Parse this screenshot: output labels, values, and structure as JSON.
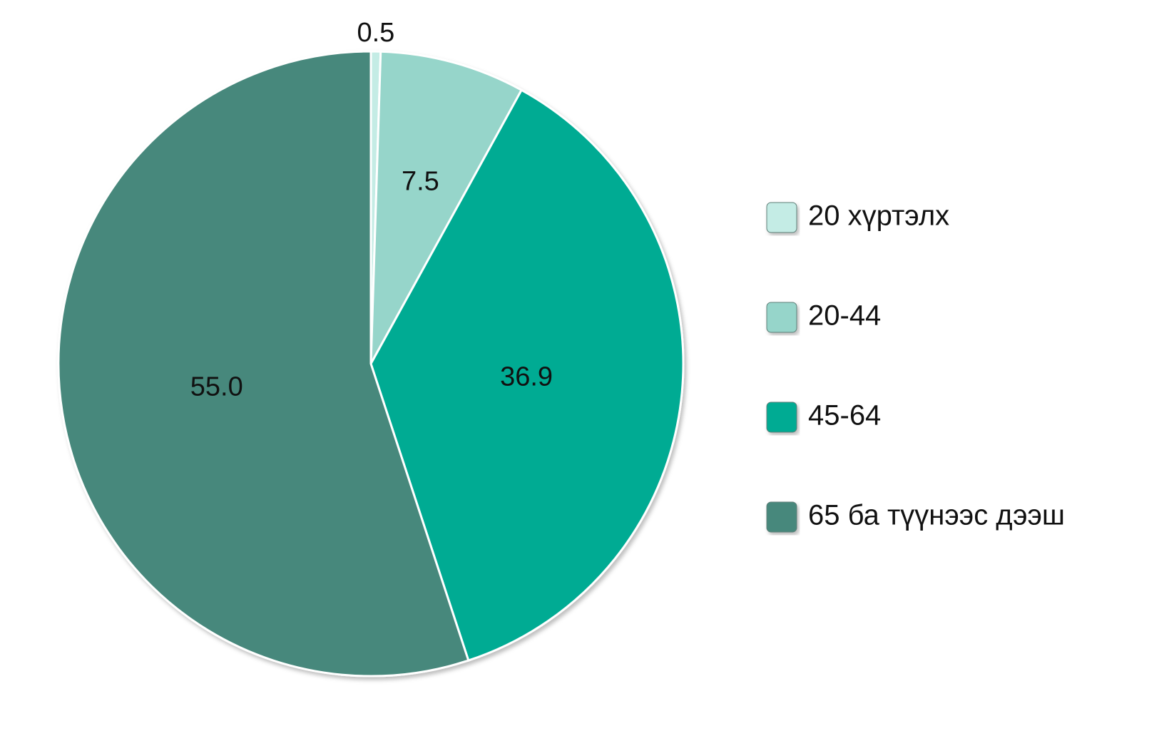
{
  "chart_data": {
    "type": "pie",
    "title": "",
    "slices": [
      {
        "label": "20 хүртэлх",
        "value": 0.5,
        "display": "0.5",
        "color": "#c4ece5"
      },
      {
        "label": "20-44",
        "value": 7.5,
        "display": "7.5",
        "color": "#96d5ca"
      },
      {
        "label": "45-64",
        "value": 36.9,
        "display": "36.9",
        "color": "#00ab93"
      },
      {
        "label": "65 ба түүнээс дээш",
        "value": 55.0,
        "display": "55.0",
        "color": "#47887c"
      }
    ],
    "legend": {
      "position": "right"
    }
  }
}
